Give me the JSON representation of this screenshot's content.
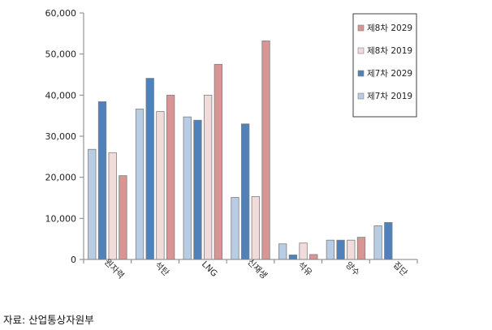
{
  "source": "자료: 산업통상자원부",
  "chart_data": {
    "type": "bar",
    "title": "",
    "xlabel": "",
    "ylabel": "",
    "ylim": [
      0,
      60000
    ],
    "yticks": [
      "0",
      "10,000",
      "20,000",
      "30,000",
      "40,000",
      "50,000",
      "60,000"
    ],
    "grid": false,
    "legend_position": "top-right",
    "categories": [
      "원자력",
      "석탄",
      "LNG",
      "신재생",
      "석유",
      "양수",
      "집단"
    ],
    "series": [
      {
        "name": "제7차 2019",
        "color": "#b8cce4",
        "values": [
          26800,
          36600,
          34700,
          15100,
          3800,
          4700,
          8200
        ]
      },
      {
        "name": "제7차 2029",
        "color": "#4f81bd",
        "values": [
          38400,
          44100,
          33900,
          33000,
          1100,
          4700,
          9000
        ]
      },
      {
        "name": "제8차 2019",
        "color": "#f2dcdb",
        "values": [
          26000,
          36000,
          40000,
          15300,
          4000,
          4700,
          null
        ]
      },
      {
        "name": "제8차 2029",
        "color": "#d99594",
        "values": [
          20400,
          40000,
          47500,
          53200,
          1200,
          5400,
          null
        ]
      }
    ],
    "legend_order": [
      3,
      2,
      1,
      0
    ]
  }
}
